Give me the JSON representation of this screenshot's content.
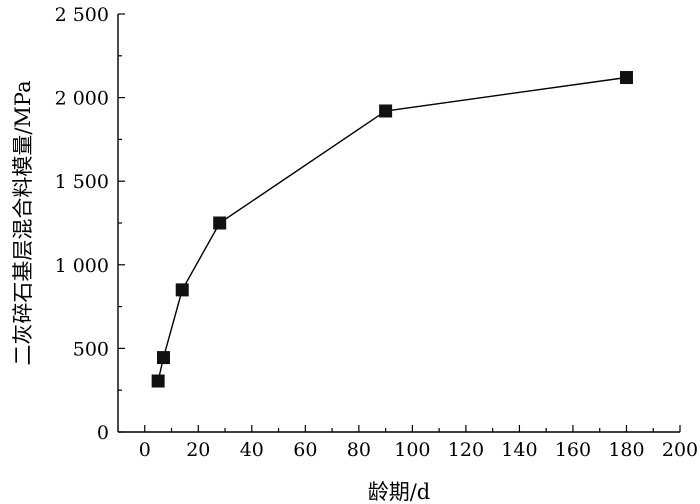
{
  "chart_data": {
    "type": "line",
    "title": "",
    "xlabel": "龄期/d",
    "ylabel": "二灰碎石基层混合料模量/MPa",
    "xlim": [
      -10,
      200
    ],
    "ylim": [
      0,
      2500
    ],
    "x_ticks": [
      0,
      20,
      40,
      60,
      80,
      100,
      120,
      140,
      160,
      180,
      200
    ],
    "x_tick_labels": [
      "0",
      "20",
      "40",
      "60",
      "80",
      "100",
      "120",
      "140",
      "160",
      "180",
      "200"
    ],
    "y_ticks": [
      0,
      500,
      1000,
      1500,
      2000,
      2500
    ],
    "y_tick_labels": [
      "0",
      "500",
      "1 000",
      "1 500",
      "2 000",
      "2 500"
    ],
    "grid": false,
    "legend": "none",
    "marker": "square",
    "color": "#111111",
    "series": [
      {
        "x": [
          5,
          7,
          14,
          28,
          90,
          180
        ],
        "y": [
          305,
          445,
          850,
          1250,
          1920,
          2120
        ]
      }
    ]
  }
}
